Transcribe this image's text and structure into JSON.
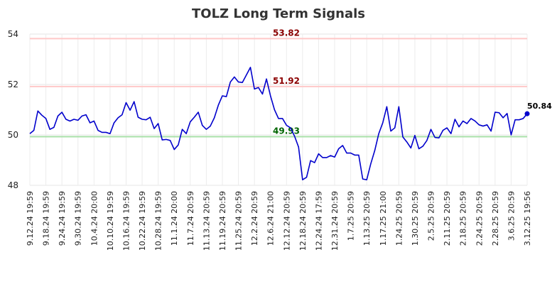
{
  "chart_data": {
    "type": "line",
    "title": "TOLZ Long Term Signals",
    "xlabel": "",
    "ylabel": "",
    "ylim": [
      48,
      54
    ],
    "yticks": [
      "48",
      "50",
      "52",
      "54"
    ],
    "grid": true,
    "x_tick_labels": [
      "9.12.24 19:59",
      "9.18.24 19:59",
      "9.24.24 19:59",
      "9.30.24 19:59",
      "10.4.24 20:00",
      "10.10.24 19:59",
      "10.16.24 19:59",
      "10.22.24 19:59",
      "10.28.24 19:59",
      "11.1.24 20:00",
      "11.7.24 20:59",
      "11.13.24 20:59",
      "11.19.24 20:59",
      "11.25.24 20:59",
      "12.2.24 20:59",
      "12.6.24 21:00",
      "12.12.24 20:59",
      "12.18.24 20:59",
      "12.24.24 17:59",
      "12.31.24 20:59",
      "1.7.25 20:59",
      "1.13.25 20:59",
      "1.17.25 21:00",
      "1.24.25 20:59",
      "1.30.25 20:59",
      "2.5.25 20:59",
      "2.11.25 20:59",
      "2.18.25 20:59",
      "2.24.25 20:59",
      "2.28.25 20:59",
      "3.6.25 20:59",
      "3.12.25 19:56"
    ],
    "levels": [
      {
        "value": 53.82,
        "label": "53.82",
        "line_color": "#ffc8c8",
        "text_color": "#8b0000"
      },
      {
        "value": 51.92,
        "label": "51.92",
        "line_color": "#ffc8c8",
        "text_color": "#8b0000"
      },
      {
        "value": 49.93,
        "label": "49.93",
        "line_color": "#a8e0a8",
        "text_color": "#006400"
      }
    ],
    "series": [
      {
        "color": "#0000cc",
        "values": [
          50.05,
          50.18,
          50.95,
          50.78,
          50.65,
          50.22,
          50.3,
          50.75,
          50.9,
          50.62,
          50.55,
          50.62,
          50.58,
          50.75,
          50.8,
          50.48,
          50.55,
          50.18,
          50.1,
          50.1,
          50.05,
          50.48,
          50.68,
          50.8,
          51.28,
          50.98,
          51.32,
          50.7,
          50.62,
          50.6,
          50.7,
          50.25,
          50.45,
          49.8,
          49.82,
          49.78,
          49.42,
          49.6,
          50.22,
          50.05,
          50.52,
          50.7,
          50.9,
          50.38,
          50.22,
          50.35,
          50.68,
          51.18,
          51.55,
          51.52,
          52.1,
          52.3,
          52.1,
          52.08,
          52.38,
          52.68,
          51.82,
          51.88,
          51.62,
          52.22,
          51.55,
          51.0,
          50.65,
          50.65,
          50.38,
          50.28,
          49.95,
          49.52,
          48.22,
          48.32,
          48.98,
          48.9,
          49.25,
          49.1,
          49.1,
          49.18,
          49.12,
          49.45,
          49.58,
          49.28,
          49.28,
          49.2,
          49.2,
          48.25,
          48.22,
          48.85,
          49.38,
          50.05,
          50.48,
          51.12,
          50.15,
          50.28,
          51.12,
          49.92,
          49.72,
          49.48,
          49.98,
          49.45,
          49.55,
          49.78,
          50.22,
          49.9,
          49.88,
          50.18,
          50.28,
          50.05,
          50.62,
          50.32,
          50.55,
          50.45,
          50.65,
          50.55,
          50.4,
          50.35,
          50.4,
          50.15,
          50.9,
          50.88,
          50.68,
          50.85,
          50.0,
          50.6,
          50.6,
          50.65,
          50.84
        ]
      }
    ],
    "last_value_label": "50.84"
  }
}
